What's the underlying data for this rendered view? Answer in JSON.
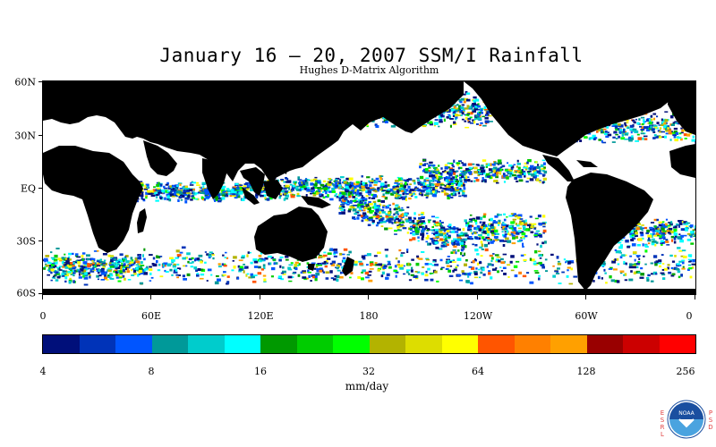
{
  "title": "January 16 – 20, 2007 SSM/I Rainfall",
  "subtitle": "Hughes D-Matrix Algorithm",
  "latitude_labels": [
    "60N",
    "30N",
    "EQ",
    "30S",
    "60S"
  ],
  "longitude_labels": [
    "0",
    "60E",
    "120E",
    "180",
    "120W",
    "60W",
    "0"
  ],
  "colorbar": {
    "tick_labels": [
      "4",
      "8",
      "16",
      "32",
      "64",
      "128",
      "256"
    ],
    "units": "mm/day",
    "colors": [
      "#000f7a",
      "#0033b8",
      "#0055ff",
      "#009999",
      "#00cccc",
      "#00ffff",
      "#009900",
      "#00cc00",
      "#00ff00",
      "#b3b300",
      "#dddd00",
      "#ffff00",
      "#ff5500",
      "#ff8000",
      "#ffa000",
      "#990000",
      "#cc0000",
      "#ff0000"
    ]
  },
  "map": {
    "land_color": "#000000",
    "ocean_color": "#ffffff",
    "type": "global precipitation map"
  },
  "logo": {
    "esrl_text": "ESRL",
    "psd_text": "PSD",
    "noaa_text": "NOAA"
  }
}
